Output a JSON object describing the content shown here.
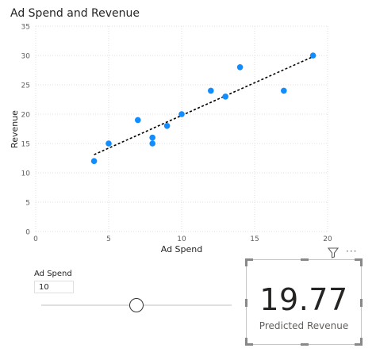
{
  "chart_data": {
    "type": "scatter",
    "title": "Ad Spend and Revenue",
    "xlabel": "Ad Spend",
    "ylabel": "Revenue",
    "xlim": [
      0,
      20
    ],
    "ylim": [
      0,
      35
    ],
    "xticks": [
      0,
      5,
      10,
      15,
      20
    ],
    "yticks": [
      0,
      5,
      10,
      15,
      20,
      25,
      30,
      35
    ],
    "grid": true,
    "points": [
      {
        "x": 4,
        "y": 12
      },
      {
        "x": 5,
        "y": 15
      },
      {
        "x": 7,
        "y": 19
      },
      {
        "x": 8,
        "y": 16
      },
      {
        "x": 8,
        "y": 15
      },
      {
        "x": 9,
        "y": 18
      },
      {
        "x": 10,
        "y": 20
      },
      {
        "x": 12,
        "y": 24
      },
      {
        "x": 13,
        "y": 23
      },
      {
        "x": 14,
        "y": 28
      },
      {
        "x": 17,
        "y": 24
      },
      {
        "x": 19,
        "y": 30
      }
    ],
    "trendline": {
      "x": [
        4,
        19
      ],
      "y": [
        13.1,
        29.8
      ]
    },
    "point_color": "#118dff",
    "trend_color": "#000000"
  },
  "parameter": {
    "label": "Ad Spend",
    "value": "10",
    "slider_fraction": 0.5
  },
  "card": {
    "value": "19.77",
    "label": "Predicted Revenue"
  },
  "toolbar": {
    "filter_icon": "filter-icon",
    "more_icon": "more-options-icon",
    "more_glyph": "···"
  }
}
